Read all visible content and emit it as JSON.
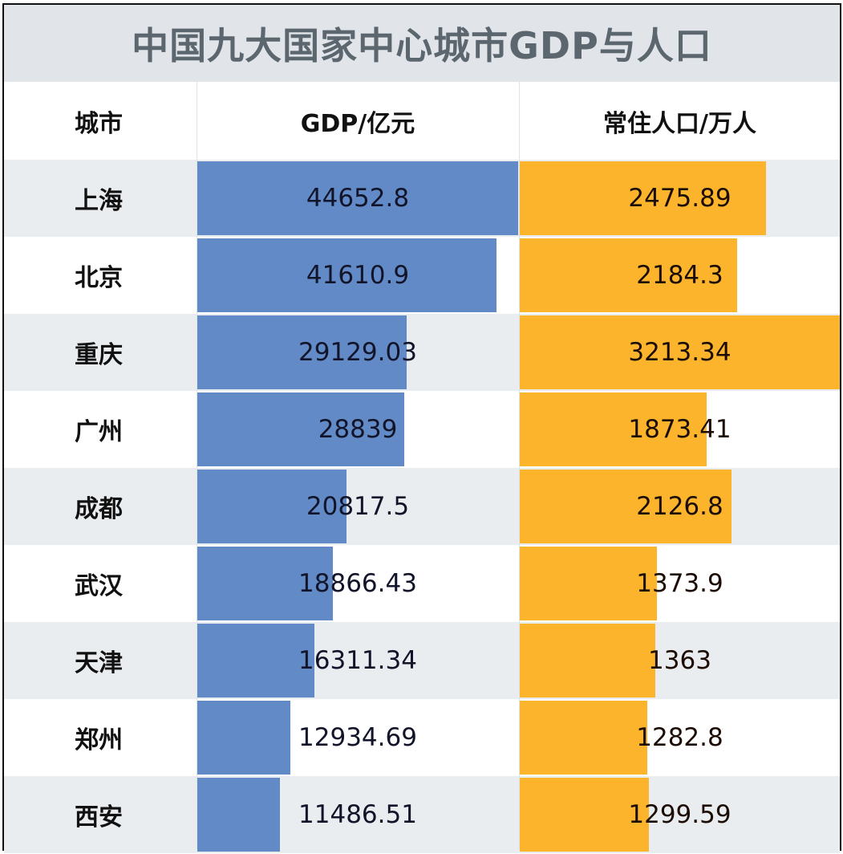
{
  "title": "中国九大国家中心城市GDP与人口",
  "headers": {
    "city": "城市",
    "gdp": "GDP/亿元",
    "population": "常住人口/万人"
  },
  "colors": {
    "title_bg": "#e1e4e9",
    "title_text": "#5b666e",
    "gdp_bar": "#628ac6",
    "pop_bar": "#fbb42c",
    "alt_row": "#eaedf0"
  },
  "rows": [
    {
      "city": "上海",
      "gdp": "44652.8",
      "population": "2475.89"
    },
    {
      "city": "北京",
      "gdp": "41610.9",
      "population": "2184.3"
    },
    {
      "city": "重庆",
      "gdp": "29129.03",
      "population": "3213.34"
    },
    {
      "city": "广州",
      "gdp": "28839",
      "population": "1873.41"
    },
    {
      "city": "成都",
      "gdp": "20817.5",
      "population": "2126.8"
    },
    {
      "city": "武汉",
      "gdp": "18866.43",
      "population": "1373.9"
    },
    {
      "city": "天津",
      "gdp": "16311.34",
      "population": "1363"
    },
    {
      "city": "郑州",
      "gdp": "12934.69",
      "population": "1282.8"
    },
    {
      "city": "西安",
      "gdp": "11486.51",
      "population": "1299.59"
    }
  ],
  "chart_data": {
    "type": "table",
    "title": "中国九大国家中心城市GDP与人口",
    "columns": [
      "城市",
      "GDP/亿元",
      "常住人口/万人"
    ],
    "categories": [
      "上海",
      "北京",
      "重庆",
      "广州",
      "成都",
      "武汉",
      "天津",
      "郑州",
      "西安"
    ],
    "series": [
      {
        "name": "GDP/亿元",
        "values": [
          44652.8,
          41610.9,
          29129.03,
          28839,
          20817.5,
          18866.43,
          16311.34,
          12934.69,
          11486.51
        ],
        "color": "#628ac6"
      },
      {
        "name": "常住人口/万人",
        "values": [
          2475.89,
          2184.3,
          3213.34,
          1873.41,
          2126.8,
          1373.9,
          1363,
          1282.8,
          1299.59
        ],
        "color": "#fbb42c"
      }
    ],
    "layout": "table with in-cell data bars (bar length proportional to column max)"
  }
}
